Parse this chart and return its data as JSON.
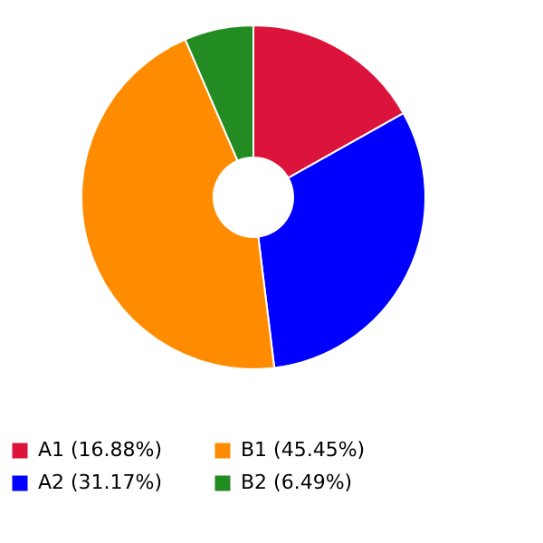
{
  "chart_data": {
    "type": "donut",
    "categories": [
      "A1 (16.88%)",
      "A2 (31.17%)",
      "B1 (45.45%)",
      "B2 (6.49%)"
    ],
    "values": [
      16.88,
      31.17,
      45.45,
      6.49
    ],
    "colors": [
      "#dc143c",
      "#0000ff",
      "#ff8c00",
      "#228b22"
    ],
    "legend": "bottom"
  }
}
